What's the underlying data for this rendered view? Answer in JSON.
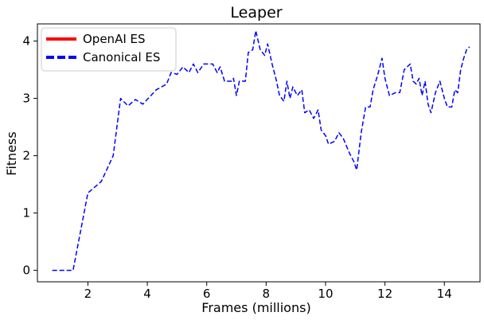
{
  "chart_data": {
    "type": "line",
    "title": "Leaper",
    "xlabel": "Frames (millions)",
    "ylabel": "Fitness",
    "xlim": [
      0.3,
      15.2
    ],
    "ylim": [
      -0.2,
      4.3
    ],
    "xticks": [
      2,
      4,
      6,
      8,
      10,
      12,
      14
    ],
    "yticks": [
      0,
      1,
      2,
      3,
      4
    ],
    "grid": false,
    "legend_position": "top-left",
    "series": [
      {
        "name": "OpenAI ES",
        "color": "#ff0000",
        "style": "solid",
        "points": []
      },
      {
        "name": "Canonical ES",
        "color": "#0000ff",
        "style": "dashed",
        "points": [
          [
            0.8,
            0.0
          ],
          [
            1.5,
            0.0
          ],
          [
            2.0,
            1.35
          ],
          [
            2.45,
            1.55
          ],
          [
            2.85,
            2.0
          ],
          [
            3.1,
            3.0
          ],
          [
            3.35,
            2.87
          ],
          [
            3.6,
            2.98
          ],
          [
            3.85,
            2.9
          ],
          [
            4.3,
            3.15
          ],
          [
            4.65,
            3.25
          ],
          [
            4.8,
            3.45
          ],
          [
            5.0,
            3.42
          ],
          [
            5.2,
            3.55
          ],
          [
            5.4,
            3.45
          ],
          [
            5.55,
            3.6
          ],
          [
            5.7,
            3.45
          ],
          [
            5.9,
            3.6
          ],
          [
            6.2,
            3.6
          ],
          [
            6.35,
            3.45
          ],
          [
            6.45,
            3.55
          ],
          [
            6.6,
            3.3
          ],
          [
            6.85,
            3.3
          ],
          [
            6.9,
            3.35
          ],
          [
            7.0,
            3.05
          ],
          [
            7.1,
            3.3
          ],
          [
            7.3,
            3.3
          ],
          [
            7.4,
            3.8
          ],
          [
            7.55,
            3.85
          ],
          [
            7.65,
            4.18
          ],
          [
            7.8,
            3.85
          ],
          [
            7.95,
            3.75
          ],
          [
            8.05,
            3.95
          ],
          [
            8.2,
            3.6
          ],
          [
            8.35,
            3.3
          ],
          [
            8.45,
            3.05
          ],
          [
            8.6,
            2.95
          ],
          [
            8.7,
            3.3
          ],
          [
            8.8,
            3.0
          ],
          [
            8.9,
            3.2
          ],
          [
            9.05,
            3.05
          ],
          [
            9.2,
            3.15
          ],
          [
            9.3,
            2.75
          ],
          [
            9.45,
            2.8
          ],
          [
            9.6,
            2.65
          ],
          [
            9.75,
            2.8
          ],
          [
            9.85,
            2.45
          ],
          [
            10.0,
            2.35
          ],
          [
            10.1,
            2.2
          ],
          [
            10.3,
            2.25
          ],
          [
            10.45,
            2.4
          ],
          [
            10.6,
            2.3
          ],
          [
            10.8,
            2.05
          ],
          [
            10.95,
            1.9
          ],
          [
            11.05,
            1.75
          ],
          [
            11.2,
            2.4
          ],
          [
            11.35,
            2.85
          ],
          [
            11.5,
            2.85
          ],
          [
            11.6,
            3.15
          ],
          [
            11.75,
            3.4
          ],
          [
            11.9,
            3.7
          ],
          [
            12.0,
            3.35
          ],
          [
            12.15,
            3.05
          ],
          [
            12.35,
            3.1
          ],
          [
            12.5,
            3.1
          ],
          [
            12.65,
            3.5
          ],
          [
            12.85,
            3.6
          ],
          [
            12.95,
            3.3
          ],
          [
            13.05,
            3.25
          ],
          [
            13.15,
            3.35
          ],
          [
            13.25,
            3.05
          ],
          [
            13.35,
            3.3
          ],
          [
            13.45,
            2.9
          ],
          [
            13.55,
            2.75
          ],
          [
            13.7,
            3.1
          ],
          [
            13.85,
            3.3
          ],
          [
            14.0,
            3.0
          ],
          [
            14.1,
            2.85
          ],
          [
            14.25,
            2.85
          ],
          [
            14.35,
            3.15
          ],
          [
            14.45,
            3.1
          ],
          [
            14.55,
            3.5
          ],
          [
            14.65,
            3.7
          ],
          [
            14.75,
            3.85
          ],
          [
            14.85,
            3.9
          ]
        ]
      }
    ]
  }
}
